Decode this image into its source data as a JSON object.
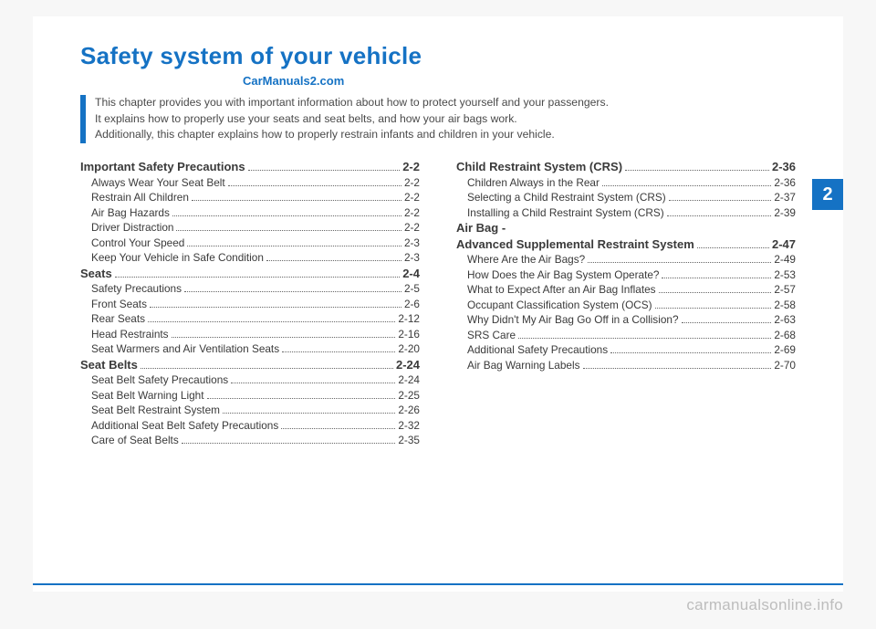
{
  "title": "Safety system of your vehicle",
  "brand": "CarManuals2.com",
  "intro_lines": [
    "This chapter provides you with important information about how to protect yourself and your passengers.",
    "It explains how to properly use your seats and seat belts, and how your air bags work.",
    "Additionally, this chapter explains how to properly restrain infants and children in your vehicle."
  ],
  "chapter_num": "2",
  "footer": "carmanualsonline.info",
  "toc_left": [
    {
      "level": "section",
      "label": "Important Safety Precautions",
      "page": "2-2"
    },
    {
      "level": "sub",
      "label": "Always Wear Your Seat Belt",
      "page": "2-2"
    },
    {
      "level": "sub",
      "label": "Restrain All Children",
      "page": "2-2"
    },
    {
      "level": "sub",
      "label": "Air Bag Hazards",
      "page": "2-2"
    },
    {
      "level": "sub",
      "label": "Driver Distraction",
      "page": "2-2"
    },
    {
      "level": "sub",
      "label": "Control Your Speed",
      "page": "2-3"
    },
    {
      "level": "sub",
      "label": "Keep Your Vehicle in Safe Condition",
      "page": "2-3"
    },
    {
      "level": "section",
      "label": "Seats",
      "page": "2-4"
    },
    {
      "level": "sub",
      "label": "Safety Precautions",
      "page": "2-5"
    },
    {
      "level": "sub",
      "label": "Front Seats",
      "page": "2-6"
    },
    {
      "level": "sub",
      "label": "Rear Seats",
      "page": "2-12"
    },
    {
      "level": "sub",
      "label": "Head Restraints",
      "page": "2-16"
    },
    {
      "level": "sub",
      "label": "Seat Warmers and Air Ventilation Seats",
      "page": "2-20"
    },
    {
      "level": "section",
      "label": "Seat Belts",
      "page": "2-24"
    },
    {
      "level": "sub",
      "label": "Seat Belt Safety Precautions",
      "page": "2-24"
    },
    {
      "level": "sub",
      "label": "Seat Belt Warning Light",
      "page": "2-25"
    },
    {
      "level": "sub",
      "label": "Seat Belt Restraint System",
      "page": "2-26"
    },
    {
      "level": "sub",
      "label": "Additional Seat Belt Safety Precautions",
      "page": "2-32"
    },
    {
      "level": "sub",
      "label": "Care of Seat Belts",
      "page": "2-35"
    }
  ],
  "toc_right": [
    {
      "level": "section",
      "label": "Child Restraint System (CRS)",
      "page": "2-36"
    },
    {
      "level": "sub",
      "label": "Children Always in the Rear",
      "page": "2-36"
    },
    {
      "level": "sub",
      "label": "Selecting a Child Restraint System (CRS)",
      "page": "2-37"
    },
    {
      "level": "sub",
      "label": "Installing a Child Restraint System (CRS)",
      "page": "2-39"
    },
    {
      "level": "section",
      "label": "Air Bag -",
      "page": ""
    },
    {
      "level": "section",
      "label": "Advanced Supplemental Restraint System",
      "page": "2-47"
    },
    {
      "level": "sub",
      "label": "Where Are the Air Bags?",
      "page": "2-49"
    },
    {
      "level": "sub",
      "label": "How Does the Air Bag System Operate?",
      "page": "2-53"
    },
    {
      "level": "sub",
      "label": "What to Expect After an Air Bag Inflates",
      "page": "2-57"
    },
    {
      "level": "sub",
      "label": "Occupant Classification System (OCS)",
      "page": "2-58"
    },
    {
      "level": "sub",
      "label": "Why Didn't My Air Bag Go Off in a Collision?",
      "page": "2-63"
    },
    {
      "level": "sub",
      "label": "SRS Care",
      "page": "2-68"
    },
    {
      "level": "sub",
      "label": "Additional Safety Precautions",
      "page": "2-69"
    },
    {
      "level": "sub",
      "label": "Air Bag Warning Labels",
      "page": "2-70"
    }
  ]
}
